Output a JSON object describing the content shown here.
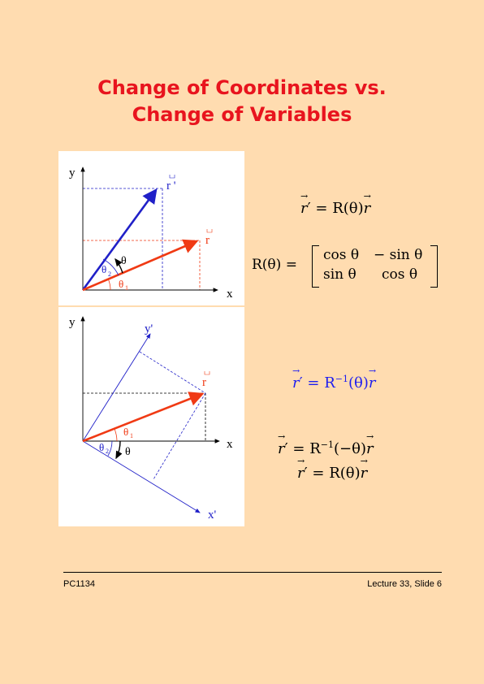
{
  "title": {
    "line1": "Change of Coordinates vs.",
    "line2": "Change of Variables"
  },
  "diagram_top": {
    "y_axis": "y",
    "x_axis": "x",
    "vec_r_prime": "r '",
    "vec_r": "r",
    "theta": "θ",
    "theta2": "θ",
    "theta2_sub": "2",
    "theta1": "θ",
    "theta1_sub": "1"
  },
  "diagram_bottom": {
    "y_axis": "y",
    "x_axis": "x",
    "y_prime": "y'",
    "x_prime": "x'",
    "vec_r": "r",
    "theta1": "θ",
    "theta1_sub": "1",
    "theta2": "θ",
    "theta2_sub": "2",
    "theta": "θ"
  },
  "equations": {
    "eq1": {
      "lhs": "r",
      "prime": "′",
      "mid": " = R(θ)",
      "rhs": "r"
    },
    "matrix": {
      "lhs": "R(θ) =",
      "a11": "cos θ",
      "a12": "− sin θ",
      "a21": "sin θ",
      "a22": "cos θ"
    },
    "eq2": {
      "lhs": "r",
      "prime": "′",
      "mid": " = R",
      "sup": "−1",
      "after": "(θ)",
      "rhs": "r"
    },
    "eq3": {
      "lhs": "r",
      "prime": "′",
      "mid": " = R",
      "sup": "−1",
      "after": "(−θ)",
      "rhs": "r"
    },
    "eq4": {
      "lhs": "r",
      "prime": "′",
      "mid": " = R(θ)",
      "rhs": "r"
    }
  },
  "colors": {
    "title": "#e8141e",
    "red_vector": "#f03a14",
    "blue_vector": "#2020c8",
    "background": "#ffdcb0"
  },
  "footer": {
    "left": "PC1134",
    "right": "Lecture 33, Slide 6"
  }
}
